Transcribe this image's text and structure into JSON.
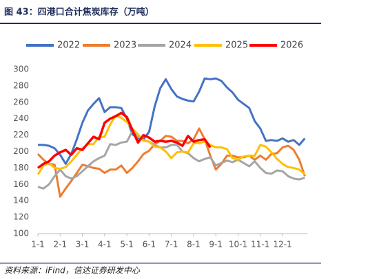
{
  "chart_data": {
    "type": "line",
    "title": "图 43：四港口合计焦炭库存（万吨）",
    "source": "资料来源：iFind，信达证券研发中心",
    "categories": [
      "1-1",
      null,
      null,
      null,
      "2-1",
      null,
      null,
      null,
      "3-1",
      null,
      null,
      null,
      "4-1",
      null,
      null,
      null,
      "5-1",
      null,
      null,
      null,
      "6-1",
      null,
      null,
      null,
      "7-1",
      null,
      null,
      null,
      "8-1",
      null,
      null,
      null,
      "9-1",
      null,
      null,
      null,
      "10-1",
      null,
      null,
      null,
      "11-1",
      null,
      null,
      null,
      "12-1",
      null,
      null,
      null,
      null
    ],
    "ylim": [
      100,
      300
    ],
    "yticks": [
      100,
      120,
      140,
      160,
      180,
      200,
      220,
      240,
      260,
      280,
      300
    ],
    "series": [
      {
        "name": "2022",
        "color": "#4472c4",
        "values": [
          208,
          208,
          207,
          204,
          196,
          185,
          197,
          215,
          235,
          250,
          258,
          265,
          248,
          254,
          254,
          253,
          240,
          221,
          216,
          215,
          224,
          255,
          277,
          288,
          276,
          267,
          264,
          262,
          261,
          273,
          289,
          288,
          289,
          286,
          278,
          272,
          263,
          258,
          253,
          237,
          228,
          213,
          214,
          213,
          216,
          212,
          214,
          208,
          216
        ]
      },
      {
        "name": "2023",
        "color": "#ed7d31",
        "values": [
          197,
          190,
          185,
          184,
          145,
          155,
          164,
          174,
          184,
          182,
          180,
          179,
          174,
          178,
          178,
          183,
          174,
          180,
          188,
          197,
          201,
          209,
          213,
          219,
          218,
          213,
          213,
          210,
          215,
          228,
          215,
          195,
          178,
          185,
          195,
          195,
          193,
          193,
          195,
          190,
          195,
          190,
          197,
          198,
          205,
          207,
          202,
          190,
          170
        ]
      },
      {
        "name": "2024",
        "color": "#a5a5a5",
        "values": [
          157,
          155,
          160,
          170,
          178,
          170,
          167,
          170,
          176,
          182,
          188,
          192,
          195,
          209,
          208,
          211,
          212,
          225,
          218,
          214,
          212,
          208,
          205,
          205,
          208,
          208,
          200,
          198,
          192,
          188,
          191,
          193,
          183,
          186,
          189,
          187,
          190,
          186,
          182,
          188,
          180,
          174,
          173,
          177,
          176,
          170,
          167,
          166,
          168
        ]
      },
      {
        "name": "2025",
        "color": "#ffc000",
        "values": [
          172,
          183,
          186,
          180,
          179,
          181,
          188,
          196,
          204,
          209,
          209,
          218,
          218,
          233,
          244,
          241,
          236,
          228,
          221,
          213,
          212,
          206,
          205,
          200,
          192,
          199,
          200,
          199,
          210,
          210,
          212,
          208,
          205,
          205,
          203,
          192,
          190,
          194,
          195,
          195,
          208,
          206,
          199,
          191,
          185,
          181,
          180,
          178,
          172
        ]
      },
      {
        "name": "2026",
        "color": "#ff0000",
        "values": [
          180,
          185,
          188,
          195,
          199,
          202,
          196,
          204,
          202,
          210,
          218,
          215,
          235,
          240,
          243,
          247,
          242,
          226,
          211,
          220,
          217,
          212,
          213,
          212,
          213,
          211,
          207,
          219,
          212,
          214,
          215,
          205,
          null,
          null,
          null,
          null,
          null,
          null,
          null,
          null,
          null,
          null,
          null,
          null,
          null,
          null,
          null,
          null,
          null
        ]
      }
    ]
  }
}
